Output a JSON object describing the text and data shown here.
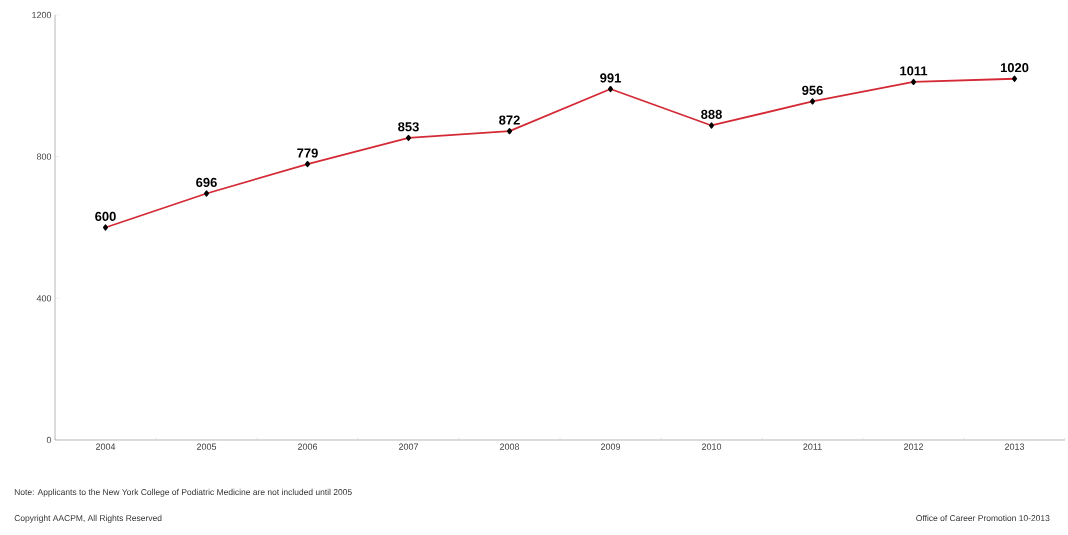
{
  "chart_data": {
    "type": "line",
    "categories": [
      "2004",
      "2005",
      "2006",
      "2007",
      "2008",
      "2009",
      "2010",
      "2011",
      "2012",
      "2013"
    ],
    "values": [
      600,
      696,
      779,
      853,
      872,
      991,
      888,
      956,
      1011,
      1020
    ],
    "color": "#d42a36",
    "ylim": [
      0,
      1200
    ],
    "yticks": [
      0,
      400,
      800,
      1200
    ],
    "grid": false,
    "marker": "diamond",
    "line_style": "solid",
    "data_labels": true,
    "annotations": [
      "Note: Applicants to the New York College of Podiatric Medicine are not included until 2005",
      "Copyright AACPM, All Rights Reserved",
      "Office of Career Promotion 10-2013"
    ]
  }
}
